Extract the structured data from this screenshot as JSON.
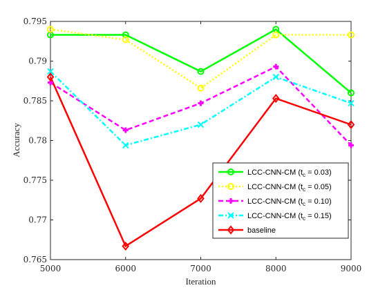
{
  "chart_data": {
    "type": "line",
    "xlabel": "Iteration",
    "ylabel": "Accuracy",
    "xlim": [
      5000,
      9000
    ],
    "ylim": [
      0.765,
      0.795
    ],
    "x": [
      5000,
      6000,
      7000,
      8000,
      9000
    ],
    "xticks": [
      5000,
      6000,
      7000,
      8000,
      9000
    ],
    "yticks": [
      0.765,
      0.77,
      0.775,
      0.78,
      0.785,
      0.79,
      0.795
    ],
    "xtick_labels": [
      "5000",
      "6000",
      "7000",
      "8000",
      "9000"
    ],
    "ytick_labels": [
      "0.765",
      "0.77",
      "0.775",
      "0.78",
      "0.785",
      "0.79",
      "0.795"
    ],
    "grid": false,
    "legend_position": "bottom-right",
    "series": [
      {
        "name": "LCC-CNN-CM (t",
        "name_sub": "c",
        "name_suffix": " = 0.03)",
        "values": [
          0.7933,
          0.7933,
          0.7887,
          0.794,
          0.786
        ],
        "color": "#00ff00",
        "line_style": "solid",
        "marker": "circle"
      },
      {
        "name": "LCC-CNN-CM (t",
        "name_sub": "c",
        "name_suffix": " = 0.05)",
        "values": [
          0.794,
          0.7927,
          0.7866,
          0.7933,
          0.7933
        ],
        "color": "#ffff00",
        "line_style": "dotted",
        "marker": "circle"
      },
      {
        "name": "LCC-CNN-CM (t",
        "name_sub": "c",
        "name_suffix": " = 0.10)",
        "values": [
          0.7873,
          0.7813,
          0.7847,
          0.7893,
          0.7794
        ],
        "color": "#ff00ff",
        "line_style": "dashed",
        "marker": "plus"
      },
      {
        "name": "LCC-CNN-CM (t",
        "name_sub": "c",
        "name_suffix": " = 0.15)",
        "values": [
          0.7887,
          0.7794,
          0.782,
          0.788,
          0.7847
        ],
        "color": "#00ffff",
        "line_style": "dashdot",
        "marker": "x"
      },
      {
        "name": "baseline",
        "name_sub": "",
        "name_suffix": "",
        "values": [
          0.788,
          0.7667,
          0.7727,
          0.7853,
          0.782
        ],
        "color": "#ff0000",
        "line_style": "solid",
        "marker": "diamond"
      }
    ]
  }
}
